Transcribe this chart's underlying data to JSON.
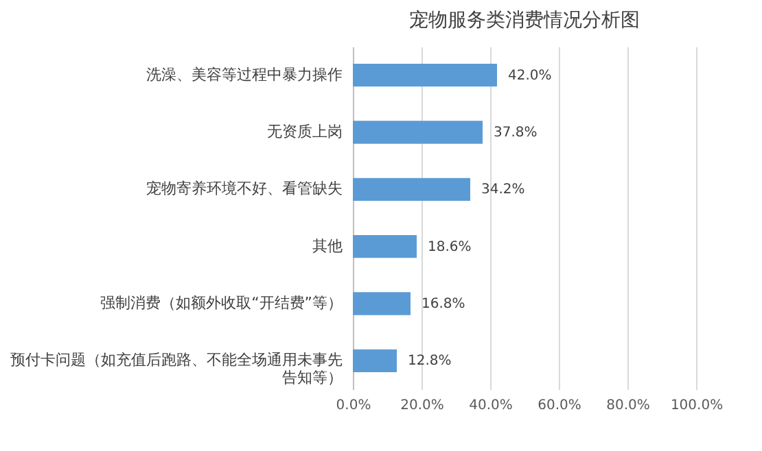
{
  "chart_data": {
    "type": "bar",
    "orientation": "horizontal",
    "title": "宠物服务类消费情况分析图",
    "categories": [
      "洗澡、美容等过程中暴力操作",
      "无资质上岗",
      "宠物寄养环境不好、看管缺失",
      "其他",
      "强制消费（如额外收取“开结费”等）",
      "预付卡问题（如充值后跑路、不能全场通用未事先告知等）"
    ],
    "values": [
      42.0,
      37.8,
      34.2,
      18.6,
      16.8,
      12.8
    ],
    "value_labels": [
      "42.0%",
      "37.8%",
      "34.2%",
      "18.6%",
      "16.8%",
      "12.8%"
    ],
    "color": "#5b9bd5",
    "xlim": [
      0,
      100
    ],
    "xticks": [
      {
        "value": 0,
        "label": "0.0%"
      },
      {
        "value": 20,
        "label": "20.0%"
      },
      {
        "value": 40,
        "label": "40.0%"
      },
      {
        "value": 60,
        "label": "60.0%"
      },
      {
        "value": 80,
        "label": "80.0%"
      },
      {
        "value": 100,
        "label": "100.0%"
      }
    ],
    "grid": "x"
  }
}
